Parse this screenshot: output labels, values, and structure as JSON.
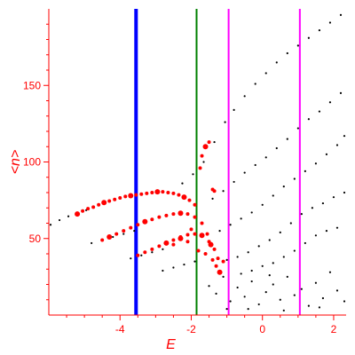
{
  "chart_data": {
    "type": "scatter",
    "title": "",
    "xlabel": "E",
    "ylabel": "<n>",
    "xlim": [
      -6.0,
      2.35
    ],
    "ylim": [
      0,
      200
    ],
    "x_ticks": [
      -4,
      -2,
      0,
      2
    ],
    "x_tick_labels": [
      "-4",
      "-2",
      "0",
      "2"
    ],
    "y_ticks": [
      50,
      100,
      150
    ],
    "y_tick_labels": [
      "50",
      "100",
      "150"
    ],
    "grid": false,
    "legend": "none",
    "colors": {
      "axis": "#ff0000",
      "black_series": "#000000",
      "red_series": "#ff0000",
      "blue_line": "#0000ff",
      "green_line": "#008000",
      "magenta_line": "#ff00ff"
    },
    "vertical_lines": [
      {
        "x": -3.55,
        "color": "#0000ff"
      },
      {
        "x": -1.85,
        "color": "#008000"
      },
      {
        "x": -0.95,
        "color": "#ff00ff"
      },
      {
        "x": 1.05,
        "color": "#ff00ff"
      }
    ],
    "series": [
      {
        "color": "#000000",
        "points": [
          [
            -5.95,
            59
          ],
          [
            -5.7,
            62
          ],
          [
            -5.45,
            64.5
          ],
          [
            -5.2,
            66.5
          ],
          [
            -4.95,
            68.5
          ],
          [
            -2.25,
            86
          ],
          [
            -1.95,
            92
          ],
          [
            -1.65,
            100
          ],
          [
            -1.35,
            113
          ],
          [
            -1.05,
            126
          ],
          [
            -0.8,
            134
          ],
          [
            -0.5,
            143
          ],
          [
            -0.2,
            151
          ],
          [
            0.1,
            158
          ],
          [
            0.4,
            165
          ],
          [
            0.7,
            171
          ],
          [
            1.0,
            176
          ],
          [
            1.3,
            181
          ],
          [
            1.6,
            186
          ],
          [
            1.9,
            191
          ],
          [
            2.2,
            196
          ],
          [
            -4.8,
            47
          ],
          [
            -4.5,
            49
          ],
          [
            -4.2,
            51
          ],
          [
            -3.9,
            53
          ],
          [
            -3.6,
            55
          ],
          [
            -1.4,
            76
          ],
          [
            -1.1,
            81
          ],
          [
            -0.8,
            87
          ],
          [
            -0.5,
            93
          ],
          [
            -0.2,
            98
          ],
          [
            0.1,
            103
          ],
          [
            0.4,
            109
          ],
          [
            0.7,
            115
          ],
          [
            1.0,
            122
          ],
          [
            1.3,
            128
          ],
          [
            1.6,
            133
          ],
          [
            1.9,
            139
          ],
          [
            2.2,
            145
          ],
          [
            -3.7,
            37
          ],
          [
            -3.4,
            39
          ],
          [
            -3.1,
            41
          ],
          [
            -2.8,
            43
          ],
          [
            -1.2,
            55
          ],
          [
            -0.9,
            59
          ],
          [
            -0.6,
            63
          ],
          [
            -0.3,
            67
          ],
          [
            0.0,
            72
          ],
          [
            0.3,
            78
          ],
          [
            0.6,
            84
          ],
          [
            0.9,
            89
          ],
          [
            1.2,
            94
          ],
          [
            1.5,
            99
          ],
          [
            1.8,
            105
          ],
          [
            2.1,
            111
          ],
          [
            2.3,
            117
          ],
          [
            -2.8,
            29
          ],
          [
            -2.5,
            31
          ],
          [
            -2.2,
            33
          ],
          [
            -1.9,
            35
          ],
          [
            -1.0,
            36
          ],
          [
            -0.7,
            38
          ],
          [
            -0.4,
            41
          ],
          [
            -0.1,
            45
          ],
          [
            0.2,
            49
          ],
          [
            0.5,
            54
          ],
          [
            0.8,
            60
          ],
          [
            1.1,
            66
          ],
          [
            1.4,
            70
          ],
          [
            1.7,
            73
          ],
          [
            2.0,
            77
          ],
          [
            2.3,
            80
          ],
          [
            -0.6,
            27
          ],
          [
            -0.3,
            29
          ],
          [
            0.0,
            32
          ],
          [
            0.3,
            34
          ],
          [
            0.6,
            38
          ],
          [
            0.9,
            42
          ],
          [
            1.2,
            47
          ],
          [
            1.5,
            52
          ],
          [
            1.8,
            55
          ],
          [
            2.1,
            57
          ],
          [
            -1.5,
            19
          ],
          [
            -1.3,
            14
          ],
          [
            -1.1,
            25
          ],
          [
            -0.9,
            9
          ],
          [
            -0.7,
            18
          ],
          [
            -0.5,
            12
          ],
          [
            -0.3,
            22
          ],
          [
            -0.1,
            7
          ],
          [
            0.1,
            15
          ],
          [
            0.3,
            20
          ],
          [
            0.5,
            10
          ],
          [
            0.7,
            25
          ],
          [
            0.9,
            13
          ],
          [
            1.1,
            17
          ],
          [
            1.3,
            6
          ],
          [
            1.5,
            21
          ],
          [
            1.7,
            11
          ],
          [
            1.9,
            28
          ],
          [
            2.1,
            16
          ],
          [
            2.3,
            9
          ],
          [
            -0.4,
            4
          ],
          [
            0.6,
            3
          ],
          [
            1.6,
            5
          ],
          [
            -1.0,
            4
          ],
          [
            0.2,
            26
          ]
        ]
      },
      {
        "color": "#ff0000",
        "points": [
          [
            -5.2,
            66
          ],
          [
            -5.05,
            68
          ],
          [
            -4.9,
            69.5
          ],
          [
            -4.75,
            70.5
          ],
          [
            -4.6,
            72
          ],
          [
            -4.45,
            73.5
          ],
          [
            -4.3,
            74.5
          ],
          [
            -4.15,
            75.5
          ],
          [
            -4.0,
            76.5
          ],
          [
            -3.85,
            77.5
          ],
          [
            -3.7,
            78
          ],
          [
            -3.55,
            78.5
          ],
          [
            -3.4,
            79
          ],
          [
            -3.25,
            79.5
          ],
          [
            -3.1,
            80
          ],
          [
            -2.95,
            80.5
          ],
          [
            -2.8,
            80.5
          ],
          [
            -2.65,
            80
          ],
          [
            -2.5,
            79.5
          ],
          [
            -2.35,
            78.5
          ],
          [
            -2.2,
            77
          ],
          [
            -2.05,
            75
          ],
          [
            -1.9,
            72
          ],
          [
            -1.75,
            96
          ],
          [
            -1.7,
            104
          ],
          [
            -1.6,
            110
          ],
          [
            -1.5,
            113
          ],
          [
            -1.4,
            82
          ],
          [
            -1.35,
            81
          ],
          [
            -4.5,
            49
          ],
          [
            -4.3,
            51
          ],
          [
            -4.1,
            53
          ],
          [
            -3.9,
            55
          ],
          [
            -3.7,
            57
          ],
          [
            -3.5,
            59
          ],
          [
            -3.3,
            61
          ],
          [
            -3.1,
            62.5
          ],
          [
            -2.9,
            64
          ],
          [
            -2.7,
            65
          ],
          [
            -2.5,
            66
          ],
          [
            -2.3,
            66.5
          ],
          [
            -2.1,
            66
          ],
          [
            -1.9,
            64
          ],
          [
            -1.7,
            60
          ],
          [
            -1.55,
            53
          ],
          [
            -1.45,
            46
          ],
          [
            -3.5,
            39
          ],
          [
            -3.3,
            41
          ],
          [
            -3.1,
            43
          ],
          [
            -2.9,
            45
          ],
          [
            -2.7,
            47
          ],
          [
            -2.5,
            49
          ],
          [
            -2.3,
            51
          ],
          [
            -2.1,
            52.5
          ],
          [
            -1.9,
            53
          ],
          [
            -1.7,
            52
          ],
          [
            -1.5,
            48
          ],
          [
            -1.35,
            43
          ],
          [
            -1.25,
            37
          ],
          [
            -2.5,
            46
          ],
          [
            -2.3,
            50
          ],
          [
            -2.1,
            48
          ],
          [
            -1.6,
            40
          ],
          [
            -1.4,
            36
          ],
          [
            -1.3,
            32
          ],
          [
            -1.2,
            28
          ],
          [
            -1.1,
            35
          ],
          [
            -1.8,
            42
          ],
          [
            -2.0,
            56
          ]
        ]
      }
    ]
  }
}
